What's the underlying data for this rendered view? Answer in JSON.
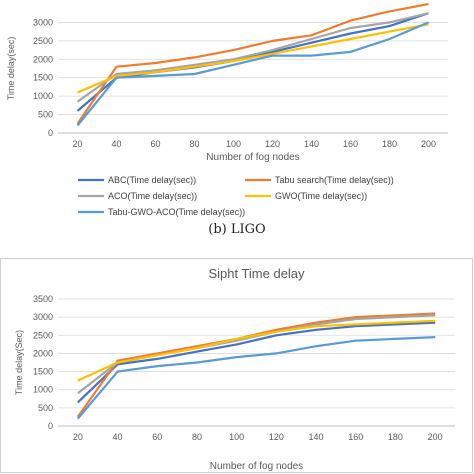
{
  "caption": "(b) LIGO",
  "chart_data": [
    {
      "type": "line",
      "title": "",
      "xlabel": "Number of fog nodes",
      "ylabel": "Time delay(sec)",
      "categories": [
        "20",
        "40",
        "60",
        "80",
        "100",
        "120",
        "140",
        "160",
        "180",
        "200"
      ],
      "ylim": [
        0,
        3500
      ],
      "yticks": [
        0,
        500,
        1000,
        1500,
        2000,
        2500,
        3000
      ],
      "grid": true,
      "legend_position": "bottom",
      "series": [
        {
          "name": "ABC(Time delay(sec))",
          "color": "#4472c4",
          "values": [
            600,
            1500,
            1650,
            1780,
            1950,
            2200,
            2450,
            2700,
            2900,
            3250
          ]
        },
        {
          "name": "Tabu search(Time delay(sec))",
          "color": "#ed7d31",
          "values": [
            250,
            1800,
            1900,
            2050,
            2250,
            2500,
            2650,
            3050,
            3300,
            3600
          ]
        },
        {
          "name": "ACO(Time delay(sec))",
          "color": "#a5a5a5",
          "values": [
            850,
            1600,
            1700,
            1850,
            2000,
            2250,
            2550,
            2850,
            3000,
            3250
          ]
        },
        {
          "name": "GWO(Time delay(sec))",
          "color": "#ffc000",
          "values": [
            1100,
            1550,
            1650,
            1800,
            1950,
            2150,
            2350,
            2550,
            2750,
            2950
          ]
        },
        {
          "name": "Tabu-GWO-ACO(Time delay(sec))",
          "color": "#5b9bd5",
          "values": [
            200,
            1500,
            1550,
            1600,
            1850,
            2100,
            2100,
            2200,
            2550,
            3000
          ]
        }
      ]
    },
    {
      "type": "line",
      "title": "Sipht Time delay",
      "xlabel": "Number of fog nodes",
      "ylabel": "Time delay(Sec)",
      "categories": [
        "20",
        "40",
        "60",
        "80",
        "100",
        "120",
        "140",
        "160",
        "180",
        "200"
      ],
      "ylim": [
        0,
        3500
      ],
      "yticks": [
        0,
        500,
        1000,
        1500,
        2000,
        2500,
        3000,
        3500
      ],
      "grid": true,
      "series": [
        {
          "color": "#4472c4",
          "values": [
            650,
            1700,
            1850,
            2050,
            2250,
            2500,
            2650,
            2750,
            2800,
            2850
          ]
        },
        {
          "color": "#ed7d31",
          "values": [
            250,
            1800,
            2000,
            2200,
            2400,
            2650,
            2850,
            3000,
            3050,
            3100
          ]
        },
        {
          "color": "#a5a5a5",
          "values": [
            900,
            1750,
            1950,
            2150,
            2350,
            2600,
            2800,
            2950,
            3000,
            3050
          ]
        },
        {
          "color": "#ffc000",
          "values": [
            1250,
            1750,
            1950,
            2150,
            2400,
            2600,
            2750,
            2800,
            2850,
            2900
          ]
        },
        {
          "color": "#5b9bd5",
          "values": [
            200,
            1500,
            1650,
            1750,
            1900,
            2000,
            2200,
            2350,
            2400,
            2450
          ]
        }
      ]
    }
  ]
}
